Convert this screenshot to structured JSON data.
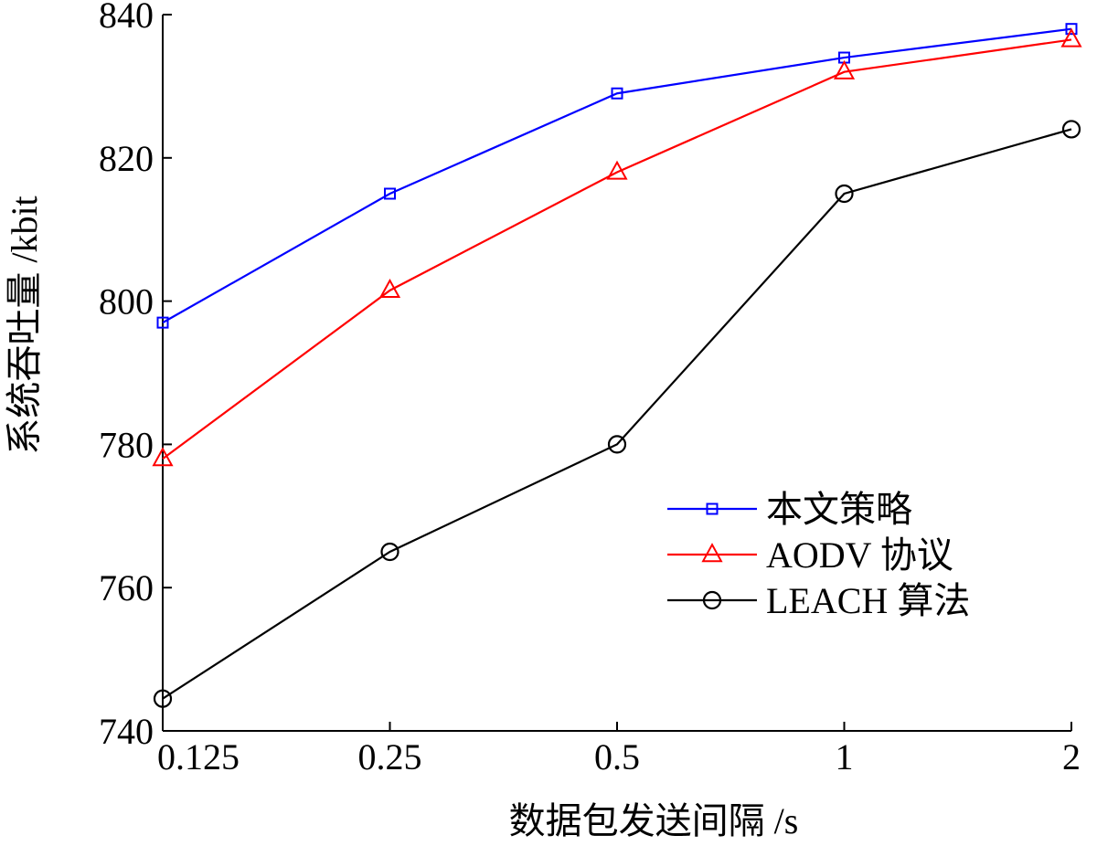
{
  "chart_data": {
    "type": "line",
    "title": "",
    "xlabel": "数据包发送间隔 /s",
    "ylabel": "系统吞吐量 /kbit",
    "categories": [
      "0.125",
      "0.25",
      "0.5",
      "1",
      "2"
    ],
    "ylim": [
      740,
      840
    ],
    "yticks": [
      "740",
      "760",
      "780",
      "800",
      "820",
      "840"
    ],
    "grid": false,
    "legend_position": "lower-right",
    "series": [
      {
        "name": "本文策略",
        "color": "#0000ff",
        "marker": "square",
        "values": [
          797,
          815,
          829,
          834,
          838
        ]
      },
      {
        "name": "AODV 协议",
        "color": "#ff0000",
        "marker": "triangle",
        "values": [
          778,
          801.5,
          818,
          832,
          836.5
        ]
      },
      {
        "name": "LEACH 算法",
        "color": "#000000",
        "marker": "circle",
        "values": [
          744.5,
          765,
          780,
          815,
          824
        ]
      }
    ]
  }
}
